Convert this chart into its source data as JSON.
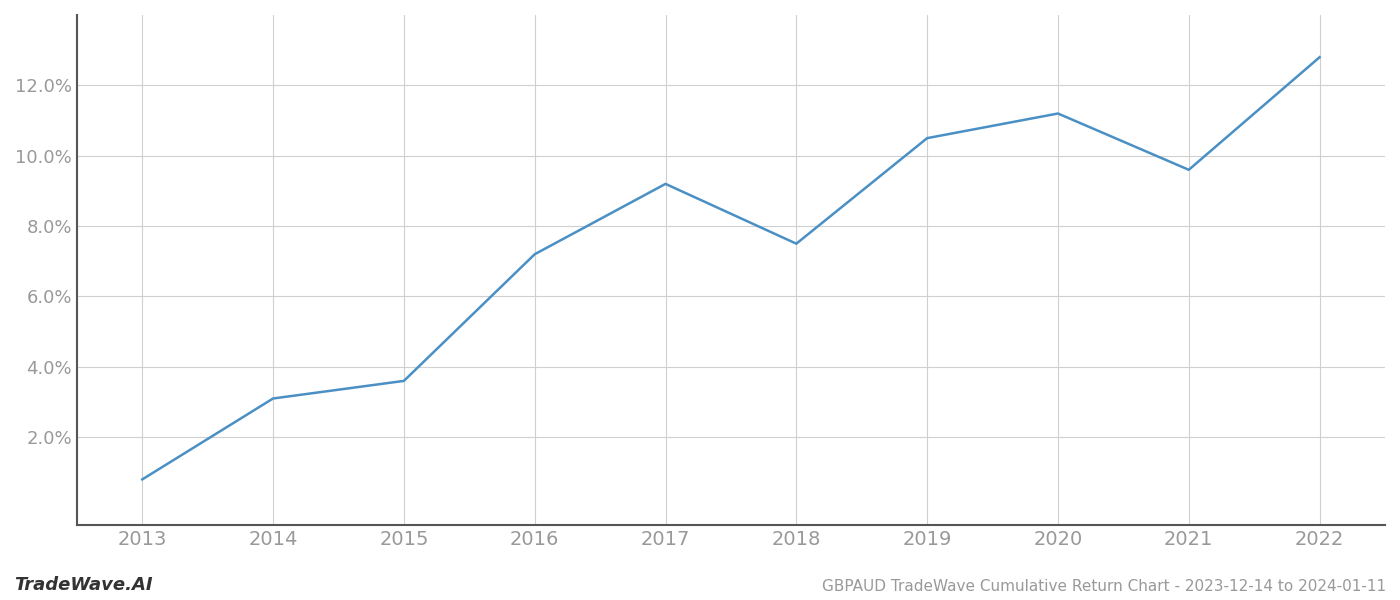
{
  "x_values": [
    2013,
    2014,
    2015,
    2016,
    2017,
    2018,
    2019,
    2020,
    2021,
    2022
  ],
  "y_values": [
    0.008,
    0.031,
    0.036,
    0.072,
    0.092,
    0.075,
    0.105,
    0.112,
    0.096,
    0.128
  ],
  "line_color": "#4a90c4",
  "line_width": 1.8,
  "background_color": "#ffffff",
  "grid_color": "#d0d0d0",
  "title": "GBPAUD TradeWave Cumulative Return Chart - 2023-12-14 to 2024-01-11",
  "watermark": "TradeWave.AI",
  "xlabel": "",
  "ylabel": "",
  "xlim": [
    2012.5,
    2022.5
  ],
  "ylim": [
    -0.005,
    0.14
  ],
  "yticks": [
    0.02,
    0.04,
    0.06,
    0.08,
    0.1,
    0.12
  ],
  "xticks": [
    2013,
    2014,
    2015,
    2016,
    2017,
    2018,
    2019,
    2020,
    2021,
    2022
  ],
  "tick_color": "#999999",
  "axis_color": "#555555",
  "title_fontsize": 11,
  "tick_fontsize": 13,
  "xtick_fontsize": 14,
  "watermark_fontsize": 13
}
